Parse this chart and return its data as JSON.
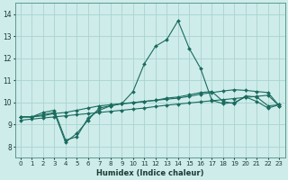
{
  "xlabel": "Humidex (Indice chaleur)",
  "bg_color": "#ceecea",
  "grid_color": "#a8d4d0",
  "line_color": "#1a6b5e",
  "xlim": [
    -0.5,
    23.5
  ],
  "ylim": [
    7.5,
    14.5
  ],
  "xticks": [
    0,
    1,
    2,
    3,
    4,
    5,
    6,
    7,
    8,
    9,
    10,
    11,
    12,
    13,
    14,
    15,
    16,
    17,
    18,
    19,
    20,
    21,
    22,
    23
  ],
  "yticks": [
    8,
    9,
    10,
    11,
    12,
    13,
    14
  ],
  "line1_x": [
    0,
    1,
    2,
    3,
    4,
    5,
    6,
    7,
    8,
    9,
    10,
    11,
    12,
    13,
    14,
    15,
    16,
    17,
    18,
    19,
    20,
    21,
    22,
    23
  ],
  "line1_y": [
    9.35,
    9.35,
    9.55,
    9.65,
    8.3,
    8.45,
    9.3,
    9.65,
    9.85,
    9.95,
    10.5,
    11.75,
    12.55,
    12.85,
    13.7,
    12.45,
    11.55,
    10.1,
    9.95,
    10.0,
    10.25,
    10.05,
    9.75,
    9.9
  ],
  "line2_x": [
    0,
    1,
    2,
    3,
    4,
    5,
    6,
    7,
    8,
    9,
    10,
    11,
    12,
    13,
    14,
    15,
    16,
    17,
    18,
    19,
    20,
    21,
    22,
    23
  ],
  "line2_y": [
    9.35,
    9.35,
    9.45,
    9.55,
    8.2,
    8.6,
    9.2,
    9.75,
    9.85,
    9.95,
    9.98,
    10.05,
    10.1,
    10.2,
    10.25,
    10.35,
    10.45,
    10.5,
    10.05,
    9.95,
    10.3,
    10.25,
    9.85,
    9.9
  ],
  "line3_x": [
    0,
    1,
    2,
    3,
    4,
    5,
    6,
    7,
    8,
    9,
    10,
    11,
    12,
    13,
    14,
    15,
    16,
    17,
    18,
    19,
    20,
    21,
    22,
    23
  ],
  "line3_y": [
    9.35,
    9.35,
    9.4,
    9.5,
    9.55,
    9.65,
    9.75,
    9.85,
    9.9,
    9.95,
    10.0,
    10.05,
    10.1,
    10.15,
    10.2,
    10.28,
    10.38,
    10.45,
    10.52,
    10.58,
    10.55,
    10.5,
    10.45,
    9.85
  ],
  "line4_x": [
    0,
    1,
    2,
    3,
    4,
    5,
    6,
    7,
    8,
    9,
    10,
    11,
    12,
    13,
    14,
    15,
    16,
    17,
    18,
    19,
    20,
    21,
    22,
    23
  ],
  "line4_y": [
    9.2,
    9.25,
    9.3,
    9.35,
    9.4,
    9.45,
    9.5,
    9.55,
    9.6,
    9.65,
    9.7,
    9.75,
    9.82,
    9.88,
    9.93,
    9.98,
    10.03,
    10.08,
    10.13,
    10.18,
    10.23,
    10.28,
    10.33,
    9.85
  ]
}
